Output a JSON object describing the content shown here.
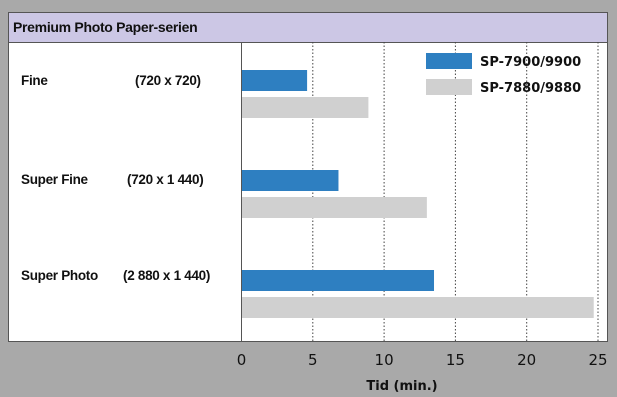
{
  "chart_data": {
    "type": "bar",
    "orientation": "horizontal",
    "title": "Premium Photo Paper-serien",
    "categories": [
      {
        "name": "Fine",
        "resolution": "(720 x 720)"
      },
      {
        "name": "Super Fine",
        "resolution": "(720 x 1 440)"
      },
      {
        "name": "Super Photo",
        "resolution": "(2 880 x 1 440)"
      }
    ],
    "series": [
      {
        "name": "SP-7900/9900",
        "color": "#2e7fc1",
        "values": [
          4.6,
          6.8,
          13.5
        ]
      },
      {
        "name": "SP-7880/9880",
        "color": "#d0d0d0",
        "values": [
          8.9,
          13.0,
          24.7
        ]
      }
    ],
    "xlabel": "Tid (min.)",
    "xlim": [
      0,
      25
    ],
    "xticks": [
      0,
      5,
      10,
      15,
      20,
      25
    ],
    "grid": "vertical dotted",
    "legend_position": "top-right"
  }
}
